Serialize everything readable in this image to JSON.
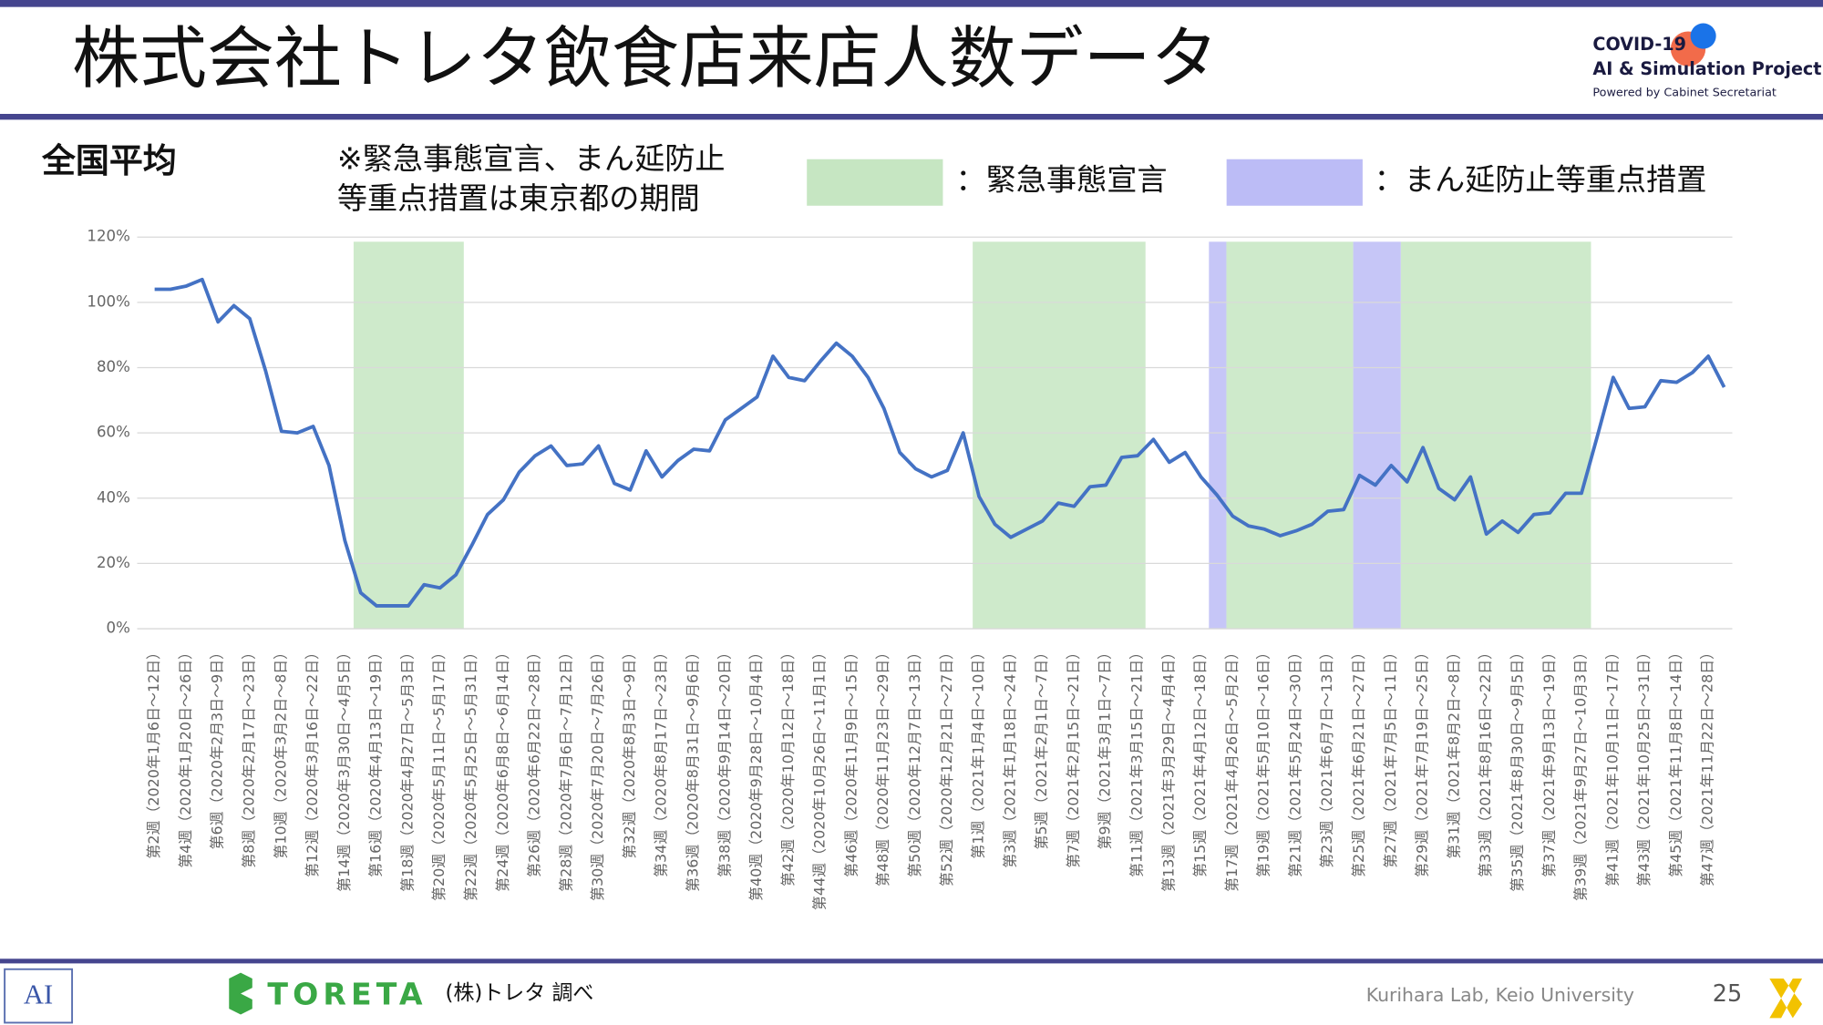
{
  "header": {
    "title": "株式会社トレタ飲食店来店人数データ",
    "logo": {
      "line1": "COVID-19",
      "line2": "AI & Simulation Project",
      "line3": "Powered by Cabinet Secretariat"
    }
  },
  "footer": {
    "brand": "TORETA",
    "source": "(株)トレタ 調べ",
    "lab": "Kurihara Lab, Keio University",
    "page": "25",
    "left_logo": "AI"
  },
  "chart_data": {
    "type": "line",
    "title": "全国平均",
    "note": [
      "※緊急事態宣言、まん延防止",
      "等重点措置は東京都の期間"
    ],
    "color": "#4472c4",
    "grid": true,
    "ylim": [
      0,
      120
    ],
    "yticks": [
      {
        "value": 0,
        "label": "0%"
      },
      {
        "value": 20,
        "label": "20%"
      },
      {
        "value": 40,
        "label": "40%"
      },
      {
        "value": 60,
        "label": "60%"
      },
      {
        "value": 80,
        "label": "80%"
      },
      {
        "value": 100,
        "label": "100%"
      },
      {
        "value": 120,
        "label": "120%"
      }
    ],
    "legend": [
      {
        "label": "：緊急事態宣言",
        "color": "#c6e6c2",
        "periods": [
          [
            12.55,
            19.5
          ],
          [
            51.6,
            62.5
          ],
          [
            67.6,
            75.6
          ],
          [
            78.6,
            90.6
          ]
        ]
      },
      {
        "label": "：まん延防止等重点措置",
        "color": "#bcbcf6",
        "periods": [
          [
            66.5,
            67.6
          ],
          [
            75.6,
            78.6
          ]
        ]
      }
    ],
    "categories": [
      "第2週（2020年1月6日～12日）",
      null,
      "第4週（2020年1月20日～26日）",
      null,
      "第6週（2020年2月3日～9日）",
      null,
      "第8週（2020年2月17日～23日）",
      null,
      "第10週（2020年3月2日～8日）",
      null,
      "第12週（2020年3月16日～22日）",
      null,
      "第14週（2020年3月30日～4月5日）",
      null,
      "第16週（2020年4月13日～19日）",
      null,
      "第18週（2020年4月27日～5月3日）",
      null,
      "第20週（2020年5月11日～5月17日）",
      null,
      "第22週（2020年5月25日～5月31日）",
      null,
      "第24週（2020年6月8日～6月14日）",
      null,
      "第26週（2020年6月22日～28日）",
      null,
      "第28週（2020年7月6日～7月12日）",
      null,
      "第30週（2020年7月20日～7月26日）",
      null,
      "第32週（2020年8月3日～9日）",
      null,
      "第34週（2020年8月17日～23日）",
      null,
      "第36週（2020年8月31日～9月6日）",
      null,
      "第38週（2020年9月14日～20日）",
      null,
      "第40週（2020年9月28日～10月4日）",
      null,
      "第42週（2020年10月12日～18日）",
      null,
      "第44週（2020年10月26日～11月1日）",
      null,
      "第46週（2020年11月9日～15日）",
      null,
      "第48週（2020年11月23日～29日）",
      null,
      "第50週（2020年12月7日～13日）",
      null,
      "第52週（2020年12月21日～27日）",
      null,
      "第1週（2021年1月4日～10日）",
      null,
      "第3週（2021年1月18日～24日）",
      null,
      "第5週（2021年2月1日～7日）",
      null,
      "第7週（2021年2月15日～21日）",
      null,
      "第9週（2021年3月1日～7日）",
      null,
      "第11週（2021年3月15日～21日）",
      null,
      "第13週（2021年3月29日～4月4日）",
      null,
      "第15週（2021年4月12日～18日）",
      null,
      "第17週（2021年4月26日～5月2日）",
      null,
      "第19週（2021年5月10日～16日）",
      null,
      "第21週（2021年5月24日～30日）",
      null,
      "第23週（2021年6月7日～13日）",
      null,
      "第25週（2021年6月21日～27日）",
      null,
      "第27週（2021年7月5日～11日）",
      null,
      "第29週（2021年7月19日～25日）",
      null,
      "第31週（2021年8月2日～8日）",
      null,
      "第33週（2021年8月16日～22日）",
      null,
      "第35週（2021年8月30日～9月5日）",
      null,
      "第37週（2021年9月13日～19日）",
      null,
      "第39週（2021年9月27日～10月3日）",
      null,
      "第41週（2021年10月11日～17日）",
      null,
      "第43週（2021年10月25日～31日）",
      null,
      "第45週（2021年11月8日～14日）",
      null,
      "第47週（2021年11月22日～28日）",
      null
    ],
    "series": [
      {
        "name": "全国平均",
        "color": "#4472c4",
        "values": [
          104,
          104,
          105,
          107,
          94,
          99,
          95,
          79,
          60.5,
          60,
          62,
          50,
          27,
          11,
          7,
          7,
          7,
          13.5,
          12.5,
          16.5,
          25.5,
          35,
          39.5,
          48,
          53,
          56,
          50,
          50.5,
          56,
          44.5,
          42.5,
          54.5,
          46.5,
          51.5,
          55,
          54.5,
          64,
          67.5,
          71,
          83.5,
          77,
          76,
          82,
          87.5,
          83.5,
          77,
          67.5,
          54,
          49,
          46.5,
          48.5,
          60,
          40.5,
          32,
          28,
          30.5,
          33,
          38.5,
          37.5,
          43.5,
          44,
          52.5,
          53,
          58,
          51,
          54,
          46.5,
          41,
          34.5,
          31.5,
          30.5,
          28.5,
          30,
          32,
          36,
          36.5,
          47,
          44,
          50,
          45,
          55.5,
          43,
          39.5,
          46.5,
          29,
          33,
          29.5,
          35,
          35.5,
          41.5,
          41.5,
          59,
          77,
          67.5,
          68,
          76,
          75.5,
          78.5,
          83.5,
          74
        ]
      }
    ]
  }
}
